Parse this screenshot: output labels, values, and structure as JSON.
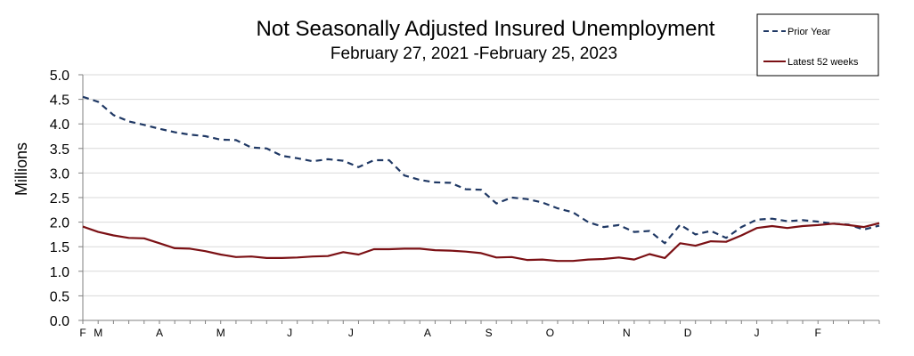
{
  "chart_data": {
    "type": "line",
    "title": "Not Seasonally Adjusted Insured Unemployment",
    "subtitle": "February 27, 2021 -February 25, 2023",
    "ylabel": "Millions",
    "xlabel": "",
    "ylim": [
      0,
      5
    ],
    "yticks": [
      "0.0",
      "0.5",
      "1.0",
      "1.5",
      "2.0",
      "2.5",
      "3.0",
      "3.5",
      "4.0",
      "4.5",
      "5.0"
    ],
    "xticks": [
      {
        "label": "F",
        "week": 0
      },
      {
        "label": "M",
        "week": 1
      },
      {
        "label": "A",
        "week": 5
      },
      {
        "label": "M",
        "week": 9
      },
      {
        "label": "J",
        "week": 13.5
      },
      {
        "label": "J",
        "week": 17.5
      },
      {
        "label": "A",
        "week": 22.5
      },
      {
        "label": "S",
        "week": 26.5
      },
      {
        "label": "O",
        "week": 30.5
      },
      {
        "label": "N",
        "week": 35.5
      },
      {
        "label": "D",
        "week": 39.5
      },
      {
        "label": "J",
        "week": 44
      },
      {
        "label": "F",
        "week": 48
      }
    ],
    "weeks": 52,
    "legend_position": "top-right",
    "series": [
      {
        "name": "Prior Year",
        "color": "#1f3864",
        "style": "dashed",
        "values": [
          4.55,
          4.45,
          4.18,
          4.05,
          3.98,
          3.9,
          3.83,
          3.78,
          3.75,
          3.68,
          3.67,
          3.52,
          3.5,
          3.35,
          3.3,
          3.24,
          3.28,
          3.25,
          3.12,
          3.26,
          3.26,
          2.95,
          2.86,
          2.81,
          2.8,
          2.67,
          2.66,
          2.38,
          2.5,
          2.47,
          2.4,
          2.28,
          2.2,
          2.0,
          1.9,
          1.94,
          1.8,
          1.82,
          1.57,
          1.95,
          1.75,
          1.82,
          1.68,
          1.9,
          2.05,
          2.07,
          2.02,
          2.04,
          2.01,
          1.97,
          1.95,
          1.85,
          1.93
        ]
      },
      {
        "name": "Latest 52 weeks",
        "color": "#7b1014",
        "style": "solid",
        "values": [
          1.91,
          1.8,
          1.73,
          1.68,
          1.67,
          1.57,
          1.47,
          1.46,
          1.41,
          1.34,
          1.29,
          1.3,
          1.27,
          1.27,
          1.28,
          1.3,
          1.31,
          1.39,
          1.34,
          1.45,
          1.45,
          1.46,
          1.46,
          1.43,
          1.42,
          1.4,
          1.37,
          1.28,
          1.29,
          1.23,
          1.24,
          1.21,
          1.21,
          1.24,
          1.25,
          1.28,
          1.24,
          1.35,
          1.27,
          1.57,
          1.52,
          1.61,
          1.6,
          1.73,
          1.88,
          1.92,
          1.88,
          1.92,
          1.94,
          1.97,
          1.94,
          1.9,
          1.98
        ]
      }
    ]
  }
}
